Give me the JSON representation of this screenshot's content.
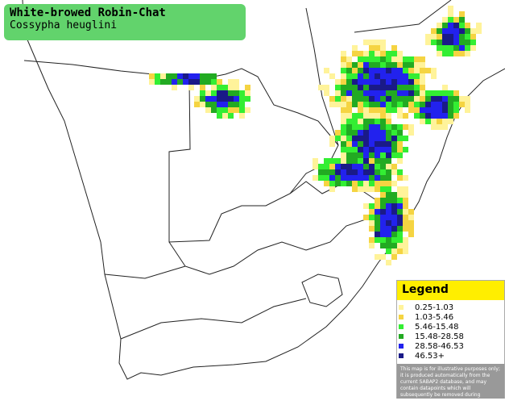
{
  "header": {
    "title": "White-browed Robin-Chat",
    "subtitle": "Cossypha heuglini"
  },
  "legend": {
    "title": "Legend",
    "items": [
      {
        "label": "0.25-1.03",
        "color": "#fff39a"
      },
      {
        "label": "1.03-5.46",
        "color": "#f5d442"
      },
      {
        "label": "5.46-15.48",
        "color": "#33ee33"
      },
      {
        "label": "15.48-28.58",
        "color": "#22aa22"
      },
      {
        "label": "28.58-46.53",
        "color": "#2222ee"
      },
      {
        "label": "46.53+",
        "color": "#1a1a88"
      }
    ],
    "note": "This map is for illustrative purposes only; it is produced automatically from the current SABAP2 database, and may contain datapoints which will subsequently be removed during checking operations."
  }
}
